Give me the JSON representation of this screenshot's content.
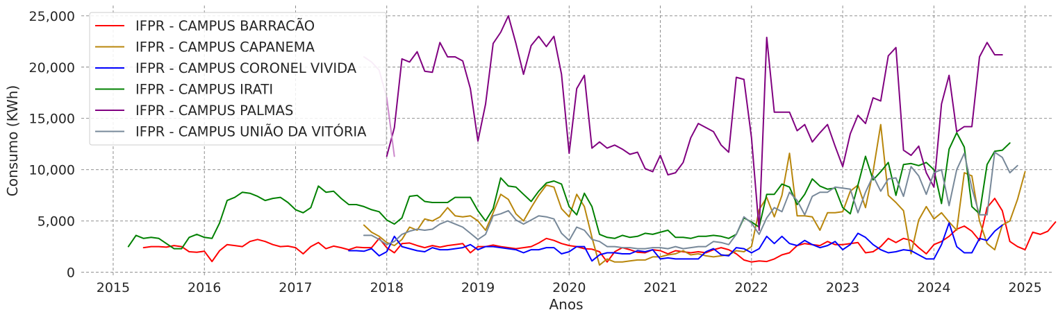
{
  "chart_data": {
    "type": "line",
    "xlabel": "Anos",
    "ylabel": "Consumo (KWh)",
    "xlim": [
      2014.65,
      2025.3
    ],
    "ylim": [
      -500,
      26000
    ],
    "x_ticks": [
      2015,
      2016,
      2017,
      2018,
      2019,
      2020,
      2021,
      2022,
      2023,
      2024,
      2025
    ],
    "x_tick_labels": [
      "2015",
      "2016",
      "2017",
      "2018",
      "2019",
      "2020",
      "2021",
      "2022",
      "2023",
      "2024",
      "2025"
    ],
    "y_ticks": [
      0,
      5000,
      10000,
      15000,
      20000,
      25000
    ],
    "y_tick_labels": [
      "0",
      "5,000",
      "10,000",
      "15,000",
      "20,000",
      "25,000"
    ],
    "grid": true,
    "legend": "top-left",
    "series": [
      {
        "name": "IFPR - CAMPUS BARRACÃO",
        "color": "#ff0000",
        "start": "2015-05",
        "values": [
          2400,
          2500,
          2500,
          2450,
          2600,
          2500,
          2000,
          1950,
          2050,
          1050,
          2100,
          2700,
          2600,
          2500,
          3000,
          3200,
          3000,
          2700,
          2500,
          2550,
          2400,
          1800,
          2500,
          2900,
          2300,
          2550,
          2400,
          2200,
          2450,
          2400,
          2400,
          3300,
          2400,
          1900,
          2800,
          2850,
          2600,
          2400,
          2600,
          2450,
          2600,
          2700,
          2800,
          1900,
          2500,
          2500,
          2650,
          2500,
          2400,
          2300,
          2400,
          2500,
          2850,
          3300,
          3100,
          2800,
          2600,
          2500,
          2300,
          2250,
          2000,
          1000,
          2000,
          2400,
          2200,
          1950,
          1900,
          2200,
          2100,
          1800,
          2100,
          2000,
          1900,
          2000,
          1900,
          2200,
          2400,
          2200,
          1800,
          1200,
          1000,
          1100,
          1050,
          1300,
          1700,
          1900,
          2600,
          2800,
          2700,
          2600,
          3000,
          2700,
          2700,
          2800,
          2900,
          1900,
          2000,
          2500,
          3300,
          2900,
          3300,
          3100,
          2400,
          1800,
          2700,
          3000,
          3500,
          4200,
          4500,
          4000,
          3100,
          6300,
          7200,
          6000,
          3000,
          2500,
          2200,
          3900,
          3700,
          4000,
          4900
        ]
      },
      {
        "name": "IFPR - CAMPUS CAPANEMA",
        "color": "#b8860b",
        "start": "2017-10",
        "values": [
          4600,
          3900,
          3500,
          2900,
          2600,
          3200,
          4400,
          4100,
          5200,
          5000,
          5400,
          6300,
          5500,
          5400,
          5500,
          5000,
          4100,
          5800,
          7600,
          7100,
          5700,
          5000,
          6300,
          7500,
          8500,
          8300,
          6200,
          5400,
          7600,
          6400,
          3400,
          700,
          1300,
          1000,
          1000,
          1100,
          1200,
          1200,
          1500,
          1500,
          1700,
          1800,
          2100,
          1700,
          1800,
          1600,
          1500,
          1600,
          1700,
          2100,
          2000,
          2500,
          6100,
          7300,
          5400,
          7500,
          11600,
          5500,
          5500,
          5400,
          4100,
          5800,
          5800,
          5900,
          7900,
          8500,
          6300,
          9800,
          14400,
          7500,
          6800,
          6000,
          1800,
          5100,
          6400,
          5200,
          5800,
          4900,
          4100,
          9700,
          9400,
          5000,
          2800,
          2200,
          4600,
          5000,
          7100,
          9800
        ]
      },
      {
        "name": "IFPR - CAMPUS CORONEL VIVIDA",
        "color": "#0000ff",
        "start": "2017-08",
        "values": [
          2100,
          2100,
          2050,
          2300,
          1600,
          2000,
          3500,
          2500,
          2300,
          2100,
          2000,
          2400,
          2200,
          2200,
          2300,
          2400,
          2700,
          2200,
          2500,
          2500,
          2400,
          2300,
          2200,
          1900,
          2200,
          2200,
          2400,
          2400,
          1800,
          2000,
          2500,
          2500,
          1100,
          1700,
          1900,
          1900,
          1800,
          1800,
          2100,
          2000,
          2200,
          1300,
          1400,
          1300,
          1300,
          1300,
          1300,
          2000,
          2300,
          1700,
          1600,
          2400,
          2300,
          1900,
          2300,
          3500,
          2800,
          3500,
          2800,
          2600,
          3100,
          2700,
          2400,
          2600,
          3000,
          2200,
          2700,
          3800,
          3400,
          2700,
          2200,
          1900,
          2000,
          2200,
          2100,
          1700,
          1300,
          1300,
          2700,
          4800,
          2500,
          1900,
          1900,
          3300,
          3100,
          4000,
          4600
        ]
      },
      {
        "name": "IFPR - CAMPUS IRATI",
        "color": "#008000",
        "start": "2015-03",
        "values": [
          2500,
          3600,
          3300,
          3400,
          3300,
          2800,
          2300,
          2300,
          3400,
          3700,
          3400,
          3300,
          4800,
          7000,
          7300,
          7800,
          7700,
          7400,
          7000,
          7200,
          7300,
          6800,
          6100,
          5800,
          6300,
          8400,
          7800,
          7900,
          7200,
          6600,
          6600,
          6400,
          6100,
          5900,
          5100,
          4700,
          5300,
          7400,
          7500,
          6900,
          6800,
          6800,
          6800,
          7300,
          7300,
          7300,
          6000,
          5000,
          6200,
          9200,
          8400,
          8300,
          7600,
          6900,
          7900,
          8700,
          8900,
          8600,
          6400,
          5600,
          7700,
          6400,
          3700,
          3400,
          3300,
          3600,
          3400,
          3500,
          3800,
          3700,
          3900,
          4100,
          3400,
          3400,
          3300,
          3500,
          3500,
          3600,
          3500,
          3300,
          3700,
          5300,
          4900,
          4400,
          7600,
          7600,
          8600,
          8300,
          6600,
          7600,
          9100,
          8400,
          8100,
          8200,
          6300,
          5700,
          8500,
          11300,
          9000,
          9800,
          10700,
          7500,
          10500,
          10600,
          10400,
          10700,
          10000,
          6700,
          12000,
          13600,
          12200,
          6400,
          5700,
          10500,
          11800,
          11900,
          12600
        ]
      },
      {
        "name": "IFPR - CAMPUS PALMAS",
        "color": "#800080",
        "start": "2018-01",
        "values": [
          11300,
          14100,
          20800,
          20500,
          21500,
          19600,
          19500,
          22400,
          21000,
          21000,
          20600,
          17900,
          12800,
          16400,
          22300,
          23400,
          25000,
          22300,
          19300,
          22100,
          23000,
          22000,
          23000,
          19300,
          11600,
          17900,
          19200,
          12100,
          12700,
          12100,
          12400,
          12000,
          11500,
          11700,
          10100,
          9800,
          11400,
          9500,
          9700,
          10700,
          13100,
          14500,
          14100,
          13700,
          12400,
          11700,
          19000,
          18800,
          13100,
          4100,
          22900,
          15600,
          15600,
          15600,
          13800,
          14400,
          12700,
          13600,
          14400,
          12300,
          10300,
          13500,
          15300,
          14500,
          17000,
          16700,
          21100,
          21900,
          11900,
          11400,
          12300,
          9700,
          8300,
          16400,
          19200,
          13700,
          14200,
          14200,
          21000,
          22400,
          21200,
          21200
        ]
      },
      {
        "name": "IFPR - CAMPUS UNIÃO DA VITÓRIA",
        "color": "#778899",
        "start": "2017-10",
        "values": [
          3600,
          3600,
          3200,
          2700,
          3000,
          3700,
          4000,
          4200,
          4100,
          4200,
          4700,
          5000,
          4700,
          4400,
          3800,
          3200,
          3700,
          5500,
          5700,
          6000,
          5100,
          4700,
          5100,
          5500,
          5400,
          5200,
          3800,
          3100,
          4400,
          4100,
          3200,
          3000,
          2500,
          2500,
          2400,
          2400,
          2300,
          2300,
          2400,
          2400,
          2300,
          2500,
          2300,
          2400,
          2500,
          2500,
          3000,
          2900,
          2700,
          3700,
          5400,
          4800,
          3700,
          5300,
          6300,
          5900,
          7800,
          7000,
          5600,
          7400,
          7800,
          7800,
          8300,
          8200,
          8100,
          5800,
          7800,
          9400,
          7900,
          9100,
          9200,
          7400,
          10300,
          9400,
          7600,
          9700,
          10000,
          6500,
          10000,
          11600,
          8200,
          5600,
          5600,
          11700,
          11200,
          9700,
          10400
        ]
      },
      {
        "name": "",
        "color": "#cc88cc",
        "start": "2017-10",
        "values": [
          21000,
          20500,
          19700,
          17000,
          11300
        ]
      }
    ]
  }
}
